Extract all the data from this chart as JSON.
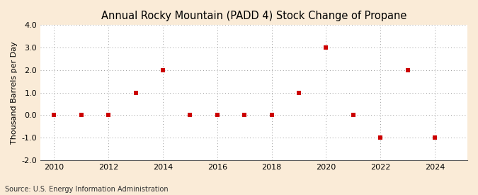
{
  "title": "Annual Rocky Mountain (PADD 4) Stock Change of Propane",
  "ylabel": "Thousand Barrels per Day",
  "source": "Source: U.S. Energy Information Administration",
  "years": [
    2010,
    2011,
    2012,
    2013,
    2014,
    2015,
    2016,
    2017,
    2018,
    2019,
    2020,
    2021,
    2022,
    2023,
    2024
  ],
  "values": [
    0,
    0,
    0,
    1,
    2,
    0,
    0,
    0,
    0,
    1,
    3,
    0,
    -1,
    2,
    -1
  ],
  "xlim": [
    2009.5,
    2025.2
  ],
  "ylim": [
    -2.0,
    4.0
  ],
  "yticks": [
    -2.0,
    -1.0,
    0.0,
    1.0,
    2.0,
    3.0,
    4.0
  ],
  "xticks": [
    2010,
    2012,
    2014,
    2016,
    2018,
    2020,
    2022,
    2024
  ],
  "marker_color": "#cc0000",
  "marker_size": 4,
  "marker_style": "s",
  "background_color": "#faebd7",
  "plot_bg_color": "#ffffff",
  "grid_color": "#999999",
  "title_fontsize": 10.5,
  "label_fontsize": 8,
  "tick_fontsize": 8,
  "source_fontsize": 7
}
